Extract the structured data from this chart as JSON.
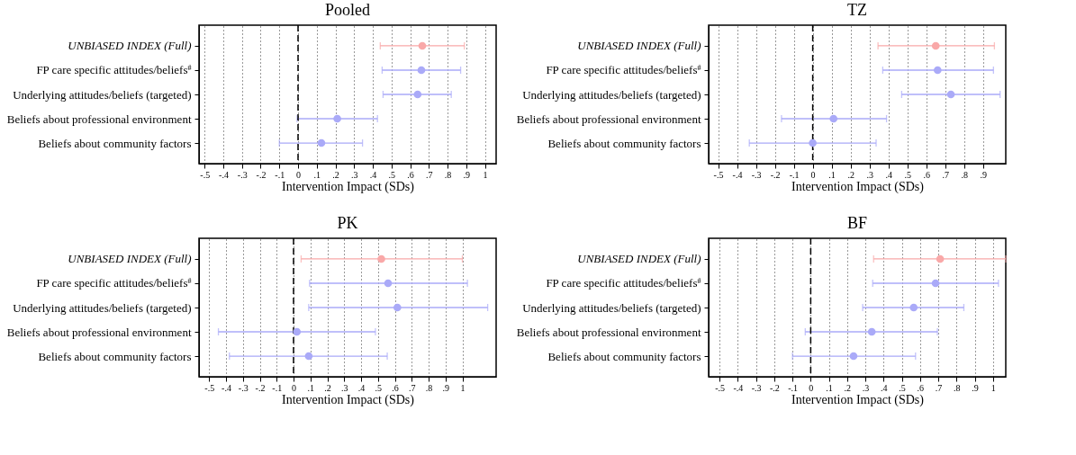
{
  "chart_data": [
    {
      "type": "scatter",
      "title": "Pooled",
      "xlabel": "Intervention Impact (SDs)",
      "orientation": "horizontal",
      "marker": "circle",
      "grid": "x",
      "categories": [
        "UNBIASED INDEX (Full)",
        "FP care specific attitudes/beliefs$^{#}$",
        "Underlying attitudes/beliefs (targeted)",
        "Beliefs about professional environment",
        "Beliefs about community factors"
      ],
      "values": [
        0.665,
        0.66,
        0.64,
        0.21,
        0.125
      ],
      "errors": [
        [
          0.44,
          0.89
        ],
        [
          0.45,
          0.87
        ],
        [
          0.455,
          0.82
        ],
        [
          -0.005,
          0.425
        ],
        [
          -0.1,
          0.345
        ]
      ],
      "colors": [
        "#f9a8a8",
        "#aaaaf8",
        "#aaaaf8",
        "#aaaaf8",
        "#aaaaf8"
      ],
      "xlim": [
        -0.53,
        1.06
      ],
      "xticks": [
        {
          "value": -0.5,
          "label": "-.5"
        },
        {
          "value": -0.4,
          "label": "-.4"
        },
        {
          "value": -0.3,
          "label": "-.3"
        },
        {
          "value": -0.2,
          "label": "-.2"
        },
        {
          "value": -0.1,
          "label": "-.1"
        },
        {
          "value": 0,
          "label": "0"
        },
        {
          "value": 0.1,
          "label": ".1"
        },
        {
          "value": 0.2,
          "label": ".2"
        },
        {
          "value": 0.3,
          "label": ".3"
        },
        {
          "value": 0.4,
          "label": ".4"
        },
        {
          "value": 0.5,
          "label": ".5"
        },
        {
          "value": 0.6,
          "label": ".6"
        },
        {
          "value": 0.7,
          "label": ".7"
        },
        {
          "value": 0.8,
          "label": ".8"
        },
        {
          "value": 0.9,
          "label": ".9"
        },
        {
          "value": 1,
          "label": "1"
        }
      ],
      "ref_lines": [
        {
          "axis": "x",
          "value": 0,
          "line_style": "dashed"
        }
      ]
    },
    {
      "type": "scatter",
      "title": "TZ",
      "xlabel": "Intervention Impact (SDs)",
      "orientation": "horizontal",
      "marker": "circle",
      "grid": "x",
      "categories": [
        "UNBIASED INDEX (Full)",
        "FP care specific attitudes/beliefs$^{#}$",
        "Underlying attitudes/beliefs (targeted)",
        "Beliefs about professional environment",
        "Beliefs about community factors"
      ],
      "values": [
        0.65,
        0.66,
        0.73,
        0.11,
        0.0
      ],
      "errors": [
        [
          0.345,
          0.96
        ],
        [
          0.37,
          0.955
        ],
        [
          0.47,
          0.99
        ],
        [
          -0.165,
          0.39
        ],
        [
          -0.335,
          0.335
        ]
      ],
      "colors": [
        "#f9a8a8",
        "#aaaaf8",
        "#aaaaf8",
        "#aaaaf8",
        "#aaaaf8"
      ],
      "xlim": [
        -0.55,
        1.02
      ],
      "xticks": [
        {
          "value": -0.5,
          "label": "-.5"
        },
        {
          "value": -0.4,
          "label": "-.4"
        },
        {
          "value": -0.3,
          "label": "-.3"
        },
        {
          "value": -0.2,
          "label": "-.2"
        },
        {
          "value": -0.1,
          "label": "-.1"
        },
        {
          "value": 0,
          "label": "0"
        },
        {
          "value": 0.1,
          "label": ".1"
        },
        {
          "value": 0.2,
          "label": ".2"
        },
        {
          "value": 0.3,
          "label": ".3"
        },
        {
          "value": 0.4,
          "label": ".4"
        },
        {
          "value": 0.5,
          "label": ".5"
        },
        {
          "value": 0.6,
          "label": ".6"
        },
        {
          "value": 0.7,
          "label": ".7"
        },
        {
          "value": 0.8,
          "label": ".8"
        },
        {
          "value": 0.9,
          "label": ".9"
        }
      ],
      "ref_lines": [
        {
          "axis": "x",
          "value": 0,
          "line_style": "dashed"
        }
      ]
    },
    {
      "type": "scatter",
      "title": "PK",
      "xlabel": "Intervention Impact (SDs)",
      "orientation": "horizontal",
      "marker": "circle",
      "grid": "x",
      "categories": [
        "UNBIASED INDEX (Full)",
        "FP care specific attitudes/beliefs$^{#}$",
        "Underlying attitudes/beliefs (targeted)",
        "Beliefs about professional environment",
        "Beliefs about community factors"
      ],
      "values": [
        0.52,
        0.56,
        0.615,
        0.02,
        0.09
      ],
      "errors": [
        [
          0.045,
          1.0
        ],
        [
          0.095,
          1.03
        ],
        [
          0.09,
          1.15
        ],
        [
          -0.445,
          0.485
        ],
        [
          -0.38,
          0.555
        ]
      ],
      "colors": [
        "#f9a8a8",
        "#aaaaf8",
        "#aaaaf8",
        "#aaaaf8",
        "#aaaaf8"
      ],
      "xlim": [
        -0.56,
        1.2
      ],
      "xticks": [
        {
          "value": -0.5,
          "label": "-.5"
        },
        {
          "value": -0.4,
          "label": "-.4"
        },
        {
          "value": -0.3,
          "label": "-.3"
        },
        {
          "value": -0.2,
          "label": "-.2"
        },
        {
          "value": -0.1,
          "label": "-.1"
        },
        {
          "value": 0,
          "label": "0"
        },
        {
          "value": 0.1,
          "label": ".1"
        },
        {
          "value": 0.2,
          "label": ".2"
        },
        {
          "value": 0.3,
          "label": ".3"
        },
        {
          "value": 0.4,
          "label": ".4"
        },
        {
          "value": 0.5,
          "label": ".5"
        },
        {
          "value": 0.6,
          "label": ".6"
        },
        {
          "value": 0.7,
          "label": ".7"
        },
        {
          "value": 0.8,
          "label": ".8"
        },
        {
          "value": 0.9,
          "label": ".9"
        },
        {
          "value": 1,
          "label": "1"
        }
      ],
      "ref_lines": [
        {
          "axis": "x",
          "value": 0,
          "line_style": "dashed"
        }
      ]
    },
    {
      "type": "scatter",
      "title": "BF",
      "xlabel": "Intervention Impact (SDs)",
      "orientation": "horizontal",
      "marker": "circle",
      "grid": "x",
      "categories": [
        "UNBIASED INDEX (Full)",
        "FP care specific attitudes/beliefs$^{#}$",
        "Underlying attitudes/beliefs (targeted)",
        "Beliefs about professional environment",
        "Beliefs about community factors"
      ],
      "values": [
        0.71,
        0.685,
        0.565,
        0.335,
        0.235
      ],
      "errors": [
        [
          0.345,
          1.07
        ],
        [
          0.34,
          1.03
        ],
        [
          0.285,
          0.84
        ],
        [
          -0.03,
          0.695
        ],
        [
          -0.1,
          0.575
        ]
      ],
      "colors": [
        "#f9a8a8",
        "#aaaaf8",
        "#aaaaf8",
        "#aaaaf8",
        "#aaaaf8"
      ],
      "xlim": [
        -0.56,
        1.07
      ],
      "xticks": [
        {
          "value": -0.5,
          "label": "-.5"
        },
        {
          "value": -0.4,
          "label": "-.4"
        },
        {
          "value": -0.3,
          "label": "-.3"
        },
        {
          "value": -0.2,
          "label": "-.2"
        },
        {
          "value": -0.1,
          "label": "-.1"
        },
        {
          "value": 0,
          "label": "0"
        },
        {
          "value": 0.1,
          "label": ".1"
        },
        {
          "value": 0.2,
          "label": ".2"
        },
        {
          "value": 0.3,
          "label": ".3"
        },
        {
          "value": 0.4,
          "label": ".4"
        },
        {
          "value": 0.5,
          "label": ".5"
        },
        {
          "value": 0.6,
          "label": ".6"
        },
        {
          "value": 0.7,
          "label": ".7"
        },
        {
          "value": 0.8,
          "label": ".8"
        },
        {
          "value": 0.9,
          "label": ".9"
        },
        {
          "value": 1,
          "label": "1"
        }
      ],
      "ref_lines": [
        {
          "axis": "x",
          "value": 0,
          "line_style": "dashed"
        }
      ]
    }
  ]
}
